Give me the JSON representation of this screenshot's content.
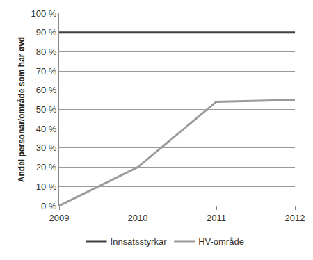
{
  "chart_data": {
    "type": "line",
    "y_label": "Andel personar/område som har øvd",
    "categories": [
      "2009",
      "2010",
      "2011",
      "2012"
    ],
    "series": [
      {
        "name": "Innsatsstyrkar",
        "color": "#404040",
        "values": [
          90,
          90,
          90,
          90
        ]
      },
      {
        "name": "HV-område",
        "color": "#9a9a9a",
        "values": [
          0,
          20,
          54,
          55
        ]
      }
    ],
    "ylim": [
      0,
      100
    ],
    "yticks": [
      {
        "value": 0,
        "label": "0 %"
      },
      {
        "value": 10,
        "label": "10 %"
      },
      {
        "value": 20,
        "label": "20 %"
      },
      {
        "value": 30,
        "label": "30 %"
      },
      {
        "value": 40,
        "label": "40 %"
      },
      {
        "value": 50,
        "label": "50 %"
      },
      {
        "value": 60,
        "label": "60 %"
      },
      {
        "value": 70,
        "label": "70 %"
      },
      {
        "value": 80,
        "label": "80 %"
      },
      {
        "value": 90,
        "label": "90 %"
      },
      {
        "value": 100,
        "label": "100 %"
      }
    ],
    "grid": true,
    "legend": "bottom"
  }
}
